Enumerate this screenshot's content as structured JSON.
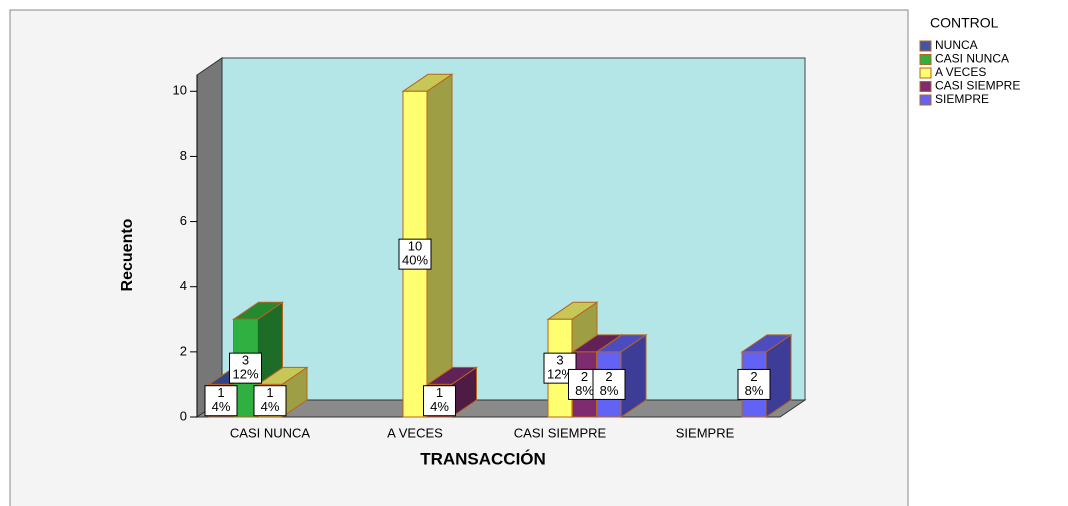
{
  "chart_data": {
    "type": "bar3d",
    "x_label": "TRANSACCIÓN",
    "y_label": "Recuento",
    "legend_title": "CONTROL",
    "legend": "right",
    "categories": [
      "CASI NUNCA",
      "A VECES",
      "CASI SIEMPRE",
      "SIEMPRE"
    ],
    "series": [
      {
        "name": "NUNCA",
        "color": "#3f56a8",
        "values": [
          1,
          null,
          null,
          null
        ],
        "percents": [
          4,
          null,
          null,
          null
        ],
        "percent_labels": [
          "4%",
          null,
          null,
          null
        ]
      },
      {
        "name": "CASI NUNCA",
        "color": "#2fb040",
        "values": [
          3,
          null,
          null,
          null
        ],
        "percents": [
          12,
          null,
          null,
          null
        ],
        "percent_labels": [
          "12%",
          null,
          null,
          null
        ]
      },
      {
        "name": "A VECES",
        "color": "#ffff70",
        "values": [
          1,
          10,
          3,
          null
        ],
        "percents": [
          4,
          40,
          12,
          null
        ],
        "percent_labels": [
          "4%",
          "40%",
          "12%",
          null
        ]
      },
      {
        "name": "CASI SIEMPRE",
        "color": "#7e2b70",
        "values": [
          null,
          1,
          2,
          null
        ],
        "percents": [
          null,
          4,
          8,
          null
        ],
        "percent_labels": [
          null,
          "4%",
          "8%",
          null
        ]
      },
      {
        "name": "SIEMPRE",
        "color": "#6262f5",
        "values": [
          null,
          null,
          2,
          2
        ],
        "percents": [
          null,
          null,
          8,
          8
        ],
        "percent_labels": [
          null,
          null,
          "8%",
          "8%"
        ]
      }
    ],
    "ylim": [
      0,
      10.5
    ],
    "yticks": [
      0,
      2,
      4,
      6,
      8,
      10
    ]
  }
}
